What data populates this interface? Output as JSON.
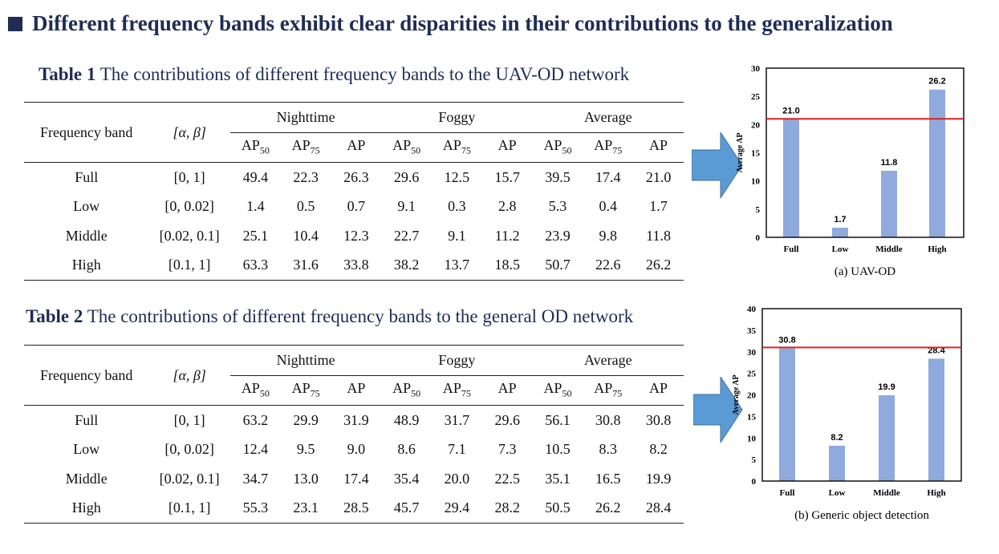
{
  "headline": "Different frequency bands exhibit clear disparities in their contributions to the generalization",
  "tables": [
    {
      "label": "Table 1",
      "caption": "The contributions of different frequency bands to the UAV-OD network",
      "col_freq": "Frequency band",
      "col_range": "[α, β]",
      "groups": [
        "Nighttime",
        "Foggy",
        "Average"
      ],
      "metrics": [
        {
          "base": "AP",
          "sub": "50"
        },
        {
          "base": "AP",
          "sub": "75"
        },
        {
          "base": "AP",
          "sub": ""
        }
      ],
      "rows": [
        {
          "band": "Full",
          "range": "[0, 1]",
          "values": [
            "49.4",
            "22.3",
            "26.3",
            "29.6",
            "12.5",
            "15.7",
            "39.5",
            "17.4",
            "21.0"
          ]
        },
        {
          "band": "Low",
          "range": "[0, 0.02]",
          "values": [
            "1.4",
            "0.5",
            "0.7",
            "9.1",
            "0.3",
            "2.8",
            "5.3",
            "0.4",
            "1.7"
          ]
        },
        {
          "band": "Middle",
          "range": "[0.02, 0.1]",
          "values": [
            "25.1",
            "10.4",
            "12.3",
            "22.7",
            "9.1",
            "11.2",
            "23.9",
            "9.8",
            "11.8"
          ]
        },
        {
          "band": "High",
          "range": "[0.1, 1]",
          "values": [
            "63.3",
            "31.6",
            "33.8",
            "38.2",
            "13.7",
            "18.5",
            "50.7",
            "22.6",
            "26.2"
          ]
        }
      ]
    },
    {
      "label": "Table 2",
      "caption": "The contributions of different frequency bands to the general OD network",
      "col_freq": "Frequency band",
      "col_range": "[α, β]",
      "groups": [
        "Nighttime",
        "Foggy",
        "Average"
      ],
      "metrics": [
        {
          "base": "AP",
          "sub": "50"
        },
        {
          "base": "AP",
          "sub": "75"
        },
        {
          "base": "AP",
          "sub": ""
        }
      ],
      "rows": [
        {
          "band": "Full",
          "range": "[0, 1]",
          "values": [
            "63.2",
            "29.9",
            "31.9",
            "48.9",
            "31.7",
            "29.6",
            "56.1",
            "30.8",
            "30.8"
          ]
        },
        {
          "band": "Low",
          "range": "[0, 0.02]",
          "values": [
            "12.4",
            "9.5",
            "9.0",
            "8.6",
            "7.1",
            "7.3",
            "10.5",
            "8.3",
            "8.2"
          ]
        },
        {
          "band": "Middle",
          "range": "[0.02, 0.1]",
          "values": [
            "34.7",
            "13.0",
            "17.4",
            "35.4",
            "20.0",
            "22.5",
            "35.1",
            "16.5",
            "19.9"
          ]
        },
        {
          "band": "High",
          "range": "[0.1, 1]",
          "values": [
            "55.3",
            "23.1",
            "28.5",
            "45.7",
            "29.4",
            "28.2",
            "50.5",
            "26.2",
            "28.4"
          ]
        }
      ]
    }
  ],
  "chart_data": [
    {
      "type": "bar",
      "title": "(a) UAV-OD",
      "categories": [
        "Full",
        "Low",
        "Middle",
        "High"
      ],
      "values": [
        21.0,
        1.7,
        11.8,
        26.2
      ],
      "labels": [
        "21.0",
        "1.7",
        "11.8",
        "26.2"
      ],
      "ylabel": "Average AP",
      "ylim": [
        0,
        30
      ],
      "yticks": [
        0,
        5,
        10,
        15,
        20,
        25,
        30
      ],
      "reference_line": 21.0,
      "bar_color": "#8faadc",
      "line_color": "#e02020"
    },
    {
      "type": "bar",
      "title": "(b) Generic object detection",
      "categories": [
        "Full",
        "Low",
        "Middle",
        "High"
      ],
      "values": [
        30.8,
        8.2,
        19.9,
        28.4
      ],
      "labels": [
        "30.8",
        "8.2",
        "19.9",
        "28.4"
      ],
      "ylabel": "Average AP",
      "ylim": [
        0,
        40
      ],
      "yticks": [
        0,
        5,
        10,
        15,
        20,
        25,
        30,
        35,
        40
      ],
      "reference_line": 31.0,
      "bar_color": "#8faadc",
      "line_color": "#e02020"
    }
  ],
  "colors": {
    "title": "#1f2d55",
    "arrow": "#5b9bd5"
  }
}
